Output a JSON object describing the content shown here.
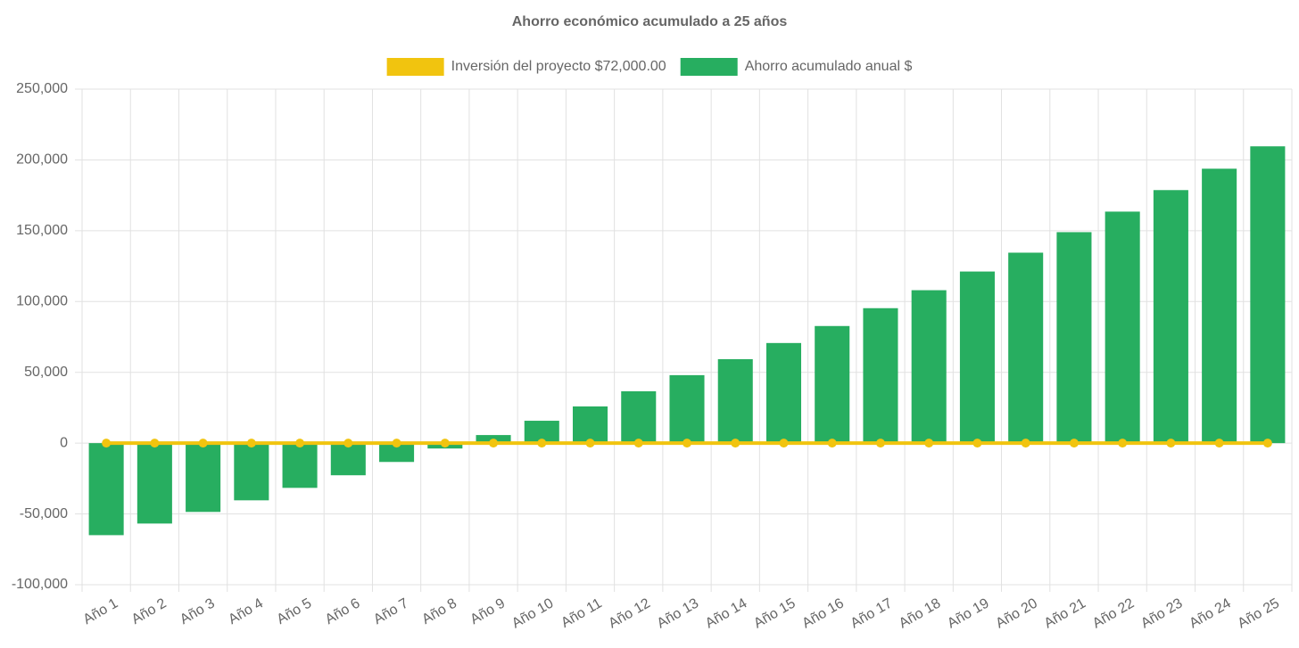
{
  "chart_data": {
    "type": "bar",
    "title": "Ahorro económico acumulado a 25 años",
    "categories": [
      "Año 1",
      "Año 2",
      "Año 3",
      "Año 4",
      "Año 5",
      "Año 6",
      "Año 7",
      "Año 8",
      "Año 9",
      "Año 10",
      "Año 11",
      "Año 12",
      "Año 13",
      "Año 14",
      "Año 15",
      "Año 16",
      "Año 17",
      "Año 18",
      "Año 19",
      "Año 20",
      "Año 21",
      "Año 22",
      "Año 23",
      "Año 24",
      "Año 25"
    ],
    "series": [
      {
        "name": "Inversión del proyecto $72,000.00",
        "type": "line",
        "color": "#f1c40f",
        "values": [
          0,
          0,
          0,
          0,
          0,
          0,
          0,
          0,
          0,
          0,
          0,
          0,
          0,
          0,
          0,
          0,
          0,
          0,
          0,
          0,
          0,
          0,
          0,
          0,
          0
        ]
      },
      {
        "name": "Ahorro acumulado anual $",
        "type": "bar",
        "color": "#27ae60",
        "values": [
          -65000,
          -56800,
          -48600,
          -40400,
          -31600,
          -22700,
          -13300,
          -3800,
          5700,
          15800,
          25900,
          36600,
          48000,
          59300,
          70700,
          82700,
          95300,
          108000,
          121200,
          134500,
          149000,
          163500,
          178700,
          193800,
          209600
        ]
      }
    ],
    "ylim": [
      -100000,
      250000
    ],
    "yticks": [
      {
        "value": -100000,
        "label": "-100,000"
      },
      {
        "value": -50000,
        "label": "-50,000"
      },
      0,
      {
        "value": 50000,
        "label": "50,000"
      },
      {
        "value": 100000,
        "label": "100,000"
      },
      {
        "value": 150000,
        "label": "150,000"
      },
      {
        "value": 200000,
        "label": "200,000"
      },
      {
        "value": 250000,
        "label": "250,000"
      }
    ],
    "grid": true
  }
}
